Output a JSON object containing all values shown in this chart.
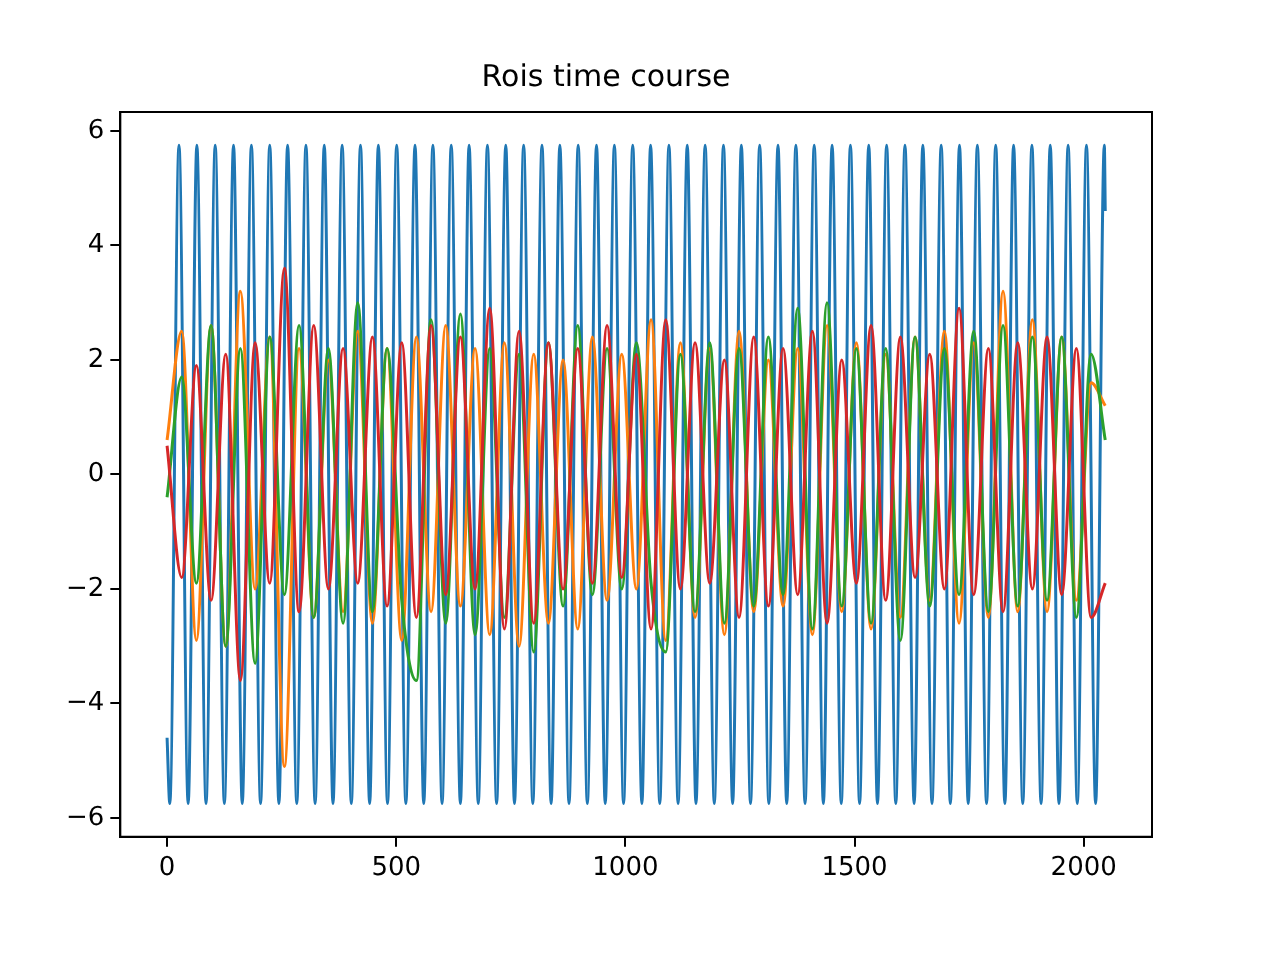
{
  "chart_data": {
    "type": "line",
    "title": "Rois time course",
    "xlim": [
      -102,
      2149
    ],
    "ylim": [
      -6.33,
      6.33
    ],
    "xticks": [
      0,
      500,
      1000,
      1500,
      2000
    ],
    "yticks": [
      {
        "value": -6,
        "label": "−6"
      },
      {
        "value": -4,
        "label": "−4"
      },
      {
        "value": -2,
        "label": "−2"
      },
      0,
      2,
      4,
      6
    ],
    "grid": false,
    "legend": false,
    "marker": "none",
    "line_style": "solid",
    "x": [
      0,
      32,
      64,
      96,
      128,
      160,
      192,
      224,
      256,
      288,
      320,
      352,
      384,
      416,
      448,
      480,
      512,
      544,
      576,
      608,
      640,
      672,
      704,
      736,
      768,
      800,
      832,
      864,
      896,
      928,
      960,
      992,
      1024,
      1056,
      1088,
      1120,
      1152,
      1184,
      1216,
      1248,
      1280,
      1312,
      1344,
      1376,
      1408,
      1440,
      1472,
      1504,
      1536,
      1568,
      1600,
      1632,
      1664,
      1696,
      1728,
      1760,
      1792,
      1824,
      1856,
      1888,
      1920,
      1952,
      1984,
      2016,
      2047
    ],
    "series": [
      {
        "color": "#1f77b4",
        "x": [
          0,
          6,
          26,
          46,
          65,
          85,
          105,
          125,
          145,
          164,
          184,
          204,
          224,
          244,
          263,
          283,
          303,
          323,
          343,
          362,
          382,
          402,
          422,
          442,
          461,
          481,
          501,
          521,
          541,
          560,
          580,
          600,
          620,
          640,
          659,
          679,
          699,
          719,
          739,
          758,
          778,
          798,
          818,
          838,
          857,
          877,
          897,
          917,
          937,
          956,
          976,
          996,
          1016,
          1036,
          1055,
          1075,
          1095,
          1115,
          1135,
          1154,
          1174,
          1194,
          1214,
          1234,
          1253,
          1273,
          1293,
          1313,
          1333,
          1352,
          1372,
          1392,
          1412,
          1432,
          1451,
          1471,
          1491,
          1511,
          1531,
          1550,
          1570,
          1590,
          1610,
          1630,
          1649,
          1669,
          1689,
          1709,
          1729,
          1748,
          1768,
          1788,
          1808,
          1828,
          1847,
          1867,
          1887,
          1907,
          1927,
          1946,
          1966,
          1986,
          2006,
          2026,
          2045,
          2047
        ],
        "values": [
          -4.6,
          -5.75,
          5.75,
          -5.75,
          5.75,
          -5.75,
          5.75,
          -5.75,
          5.75,
          -5.75,
          5.75,
          -5.75,
          5.75,
          -5.75,
          5.75,
          -5.75,
          5.75,
          -5.75,
          5.75,
          -5.75,
          5.75,
          -5.75,
          5.75,
          -5.75,
          5.75,
          -5.75,
          5.75,
          -5.75,
          5.75,
          -5.75,
          5.75,
          -5.75,
          5.75,
          -5.75,
          5.75,
          -5.75,
          5.75,
          -5.75,
          5.75,
          -5.75,
          5.75,
          -5.75,
          5.75,
          -5.75,
          5.75,
          -5.75,
          5.75,
          -5.75,
          5.75,
          -5.75,
          5.75,
          -5.75,
          5.75,
          -5.75,
          5.75,
          -5.75,
          5.75,
          -5.75,
          5.75,
          -5.75,
          5.75,
          -5.75,
          5.75,
          -5.75,
          5.75,
          -5.75,
          5.75,
          -5.75,
          5.75,
          -5.75,
          5.75,
          -5.75,
          5.75,
          -5.75,
          5.75,
          -5.75,
          5.75,
          -5.75,
          5.75,
          -5.75,
          5.75,
          -5.75,
          5.75,
          -5.75,
          5.75,
          -5.75,
          5.75,
          -5.75,
          5.75,
          -5.75,
          5.75,
          -5.75,
          5.75,
          -5.75,
          5.75,
          -5.75,
          5.75,
          -5.75,
          5.75,
          -5.75,
          5.75,
          -5.75,
          5.75,
          -5.75,
          5.75,
          4.6
        ]
      },
      {
        "color": "#ff7f0e",
        "values": [
          0.6,
          2.5,
          -2.9,
          2.6,
          -3.0,
          3.2,
          -2.0,
          2.4,
          -5.1,
          2.2,
          -2.5,
          2.0,
          -2.4,
          2.5,
          -2.6,
          2.2,
          -2.9,
          2.4,
          -2.4,
          2.6,
          -2.3,
          2.2,
          -2.8,
          2.3,
          -3.0,
          2.1,
          -2.6,
          2.0,
          -2.7,
          2.4,
          -2.2,
          2.1,
          -2.0,
          2.7,
          -2.9,
          2.3,
          -2.5,
          2.2,
          -2.8,
          2.5,
          -2.4,
          2.0,
          -2.3,
          2.2,
          -2.8,
          2.6,
          -2.4,
          2.3,
          -2.7,
          2.1,
          -2.5,
          2.4,
          -2.2,
          2.5,
          -2.6,
          2.3,
          -2.5,
          3.2,
          -2.4,
          2.7,
          -2.4,
          2.4,
          -2.2,
          1.6,
          1.2
        ]
      },
      {
        "color": "#2ca02c",
        "values": [
          -0.4,
          1.7,
          -1.9,
          2.6,
          -3.0,
          2.2,
          -3.3,
          2.4,
          -2.1,
          2.6,
          -2.5,
          2.2,
          -2.6,
          3.0,
          -2.4,
          2.2,
          -2.2,
          -3.6,
          2.7,
          -2.6,
          2.8,
          -2.8,
          2.2,
          -2.5,
          2.1,
          -3.1,
          2.3,
          -2.3,
          2.6,
          -2.1,
          2.2,
          -2.0,
          2.3,
          -1.9,
          -3.1,
          2.1,
          -2.4,
          2.3,
          -2.6,
          2.2,
          -2.3,
          2.4,
          -2.1,
          2.9,
          -2.7,
          3.0,
          -2.3,
          2.2,
          -2.6,
          2.2,
          -2.9,
          2.4,
          -2.3,
          2.2,
          -2.1,
          2.5,
          -2.4,
          2.6,
          -2.3,
          2.4,
          -2.2,
          2.4,
          -2.5,
          2.1,
          0.6
        ]
      },
      {
        "color": "#d62728",
        "values": [
          0.5,
          -1.8,
          1.9,
          -2.2,
          2.1,
          -3.6,
          2.3,
          -1.9,
          3.6,
          -2.4,
          2.6,
          -2.0,
          2.2,
          -1.9,
          2.4,
          -2.3,
          2.3,
          -2.5,
          2.6,
          -2.1,
          2.4,
          -2.0,
          2.9,
          -2.7,
          2.5,
          -2.6,
          2.3,
          -2.0,
          2.2,
          -1.9,
          2.6,
          -1.8,
          2.1,
          -2.7,
          2.7,
          -2.0,
          2.3,
          -1.9,
          2.0,
          -2.5,
          2.4,
          -2.3,
          2.2,
          -2.1,
          2.5,
          -2.6,
          2.0,
          -1.9,
          2.6,
          -2.2,
          2.4,
          -1.8,
          2.1,
          -2.0,
          2.9,
          -2.1,
          2.2,
          -2.4,
          2.3,
          -2.0,
          2.4,
          -2.1,
          2.2,
          -2.5,
          -1.9
        ]
      }
    ]
  }
}
